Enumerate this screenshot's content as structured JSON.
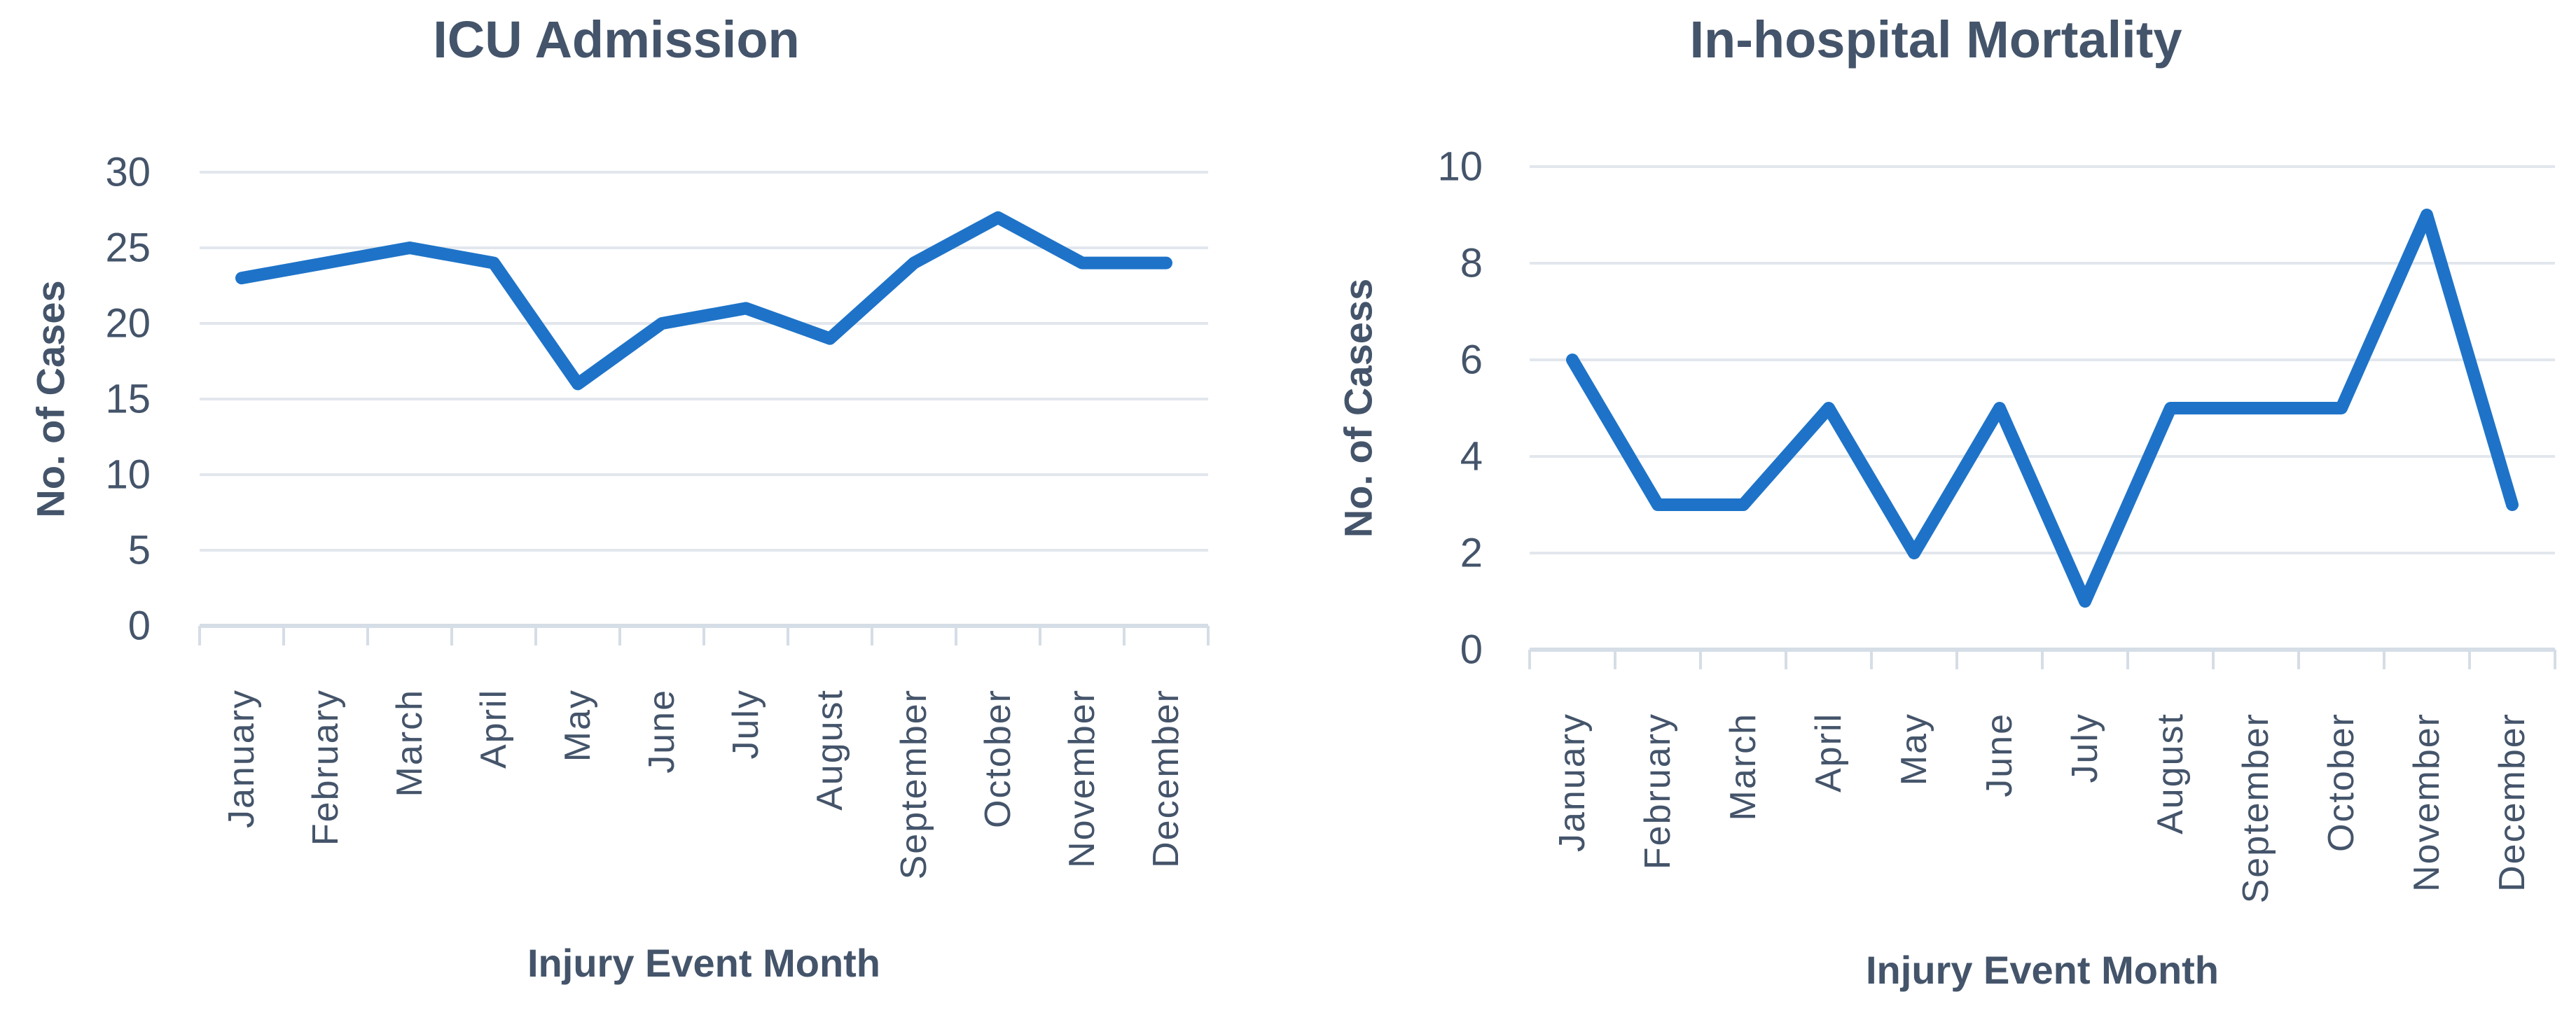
{
  "figure": {
    "background": "#ffffff",
    "description_colors": {
      "line": "#1e73c8",
      "text": "#44546a",
      "gridline": "#e2e7ed",
      "axis": "#d5dde6"
    }
  },
  "chart_data": [
    {
      "type": "line",
      "title": "ICU Admission",
      "xlabel": "Injury Event Month",
      "ylabel": "No. of Cases",
      "categories": [
        "January",
        "February",
        "March",
        "April",
        "May",
        "June",
        "July",
        "August",
        "September",
        "October",
        "November",
        "December"
      ],
      "values": [
        23,
        24,
        25,
        24,
        16,
        20,
        21,
        19,
        24,
        27,
        24,
        24
      ],
      "ylim": [
        0,
        30
      ],
      "yticks": [
        0,
        5,
        10,
        15,
        20,
        25,
        30
      ],
      "grid": true,
      "legend": "none",
      "line_color": "#1e73c8"
    },
    {
      "type": "line",
      "title": "In-hospital Mortality",
      "xlabel": "Injury Event Month",
      "ylabel": "No. of Casess",
      "categories": [
        "January",
        "February",
        "March",
        "April",
        "May",
        "June",
        "July",
        "August",
        "September",
        "October",
        "November",
        "December"
      ],
      "values": [
        6,
        3,
        3,
        5,
        2,
        5,
        1,
        5,
        5,
        5,
        9,
        3
      ],
      "ylim": [
        0,
        10
      ],
      "yticks": [
        0,
        2,
        4,
        6,
        8,
        10
      ],
      "grid": true,
      "legend": "none",
      "line_color": "#1e73c8"
    }
  ]
}
